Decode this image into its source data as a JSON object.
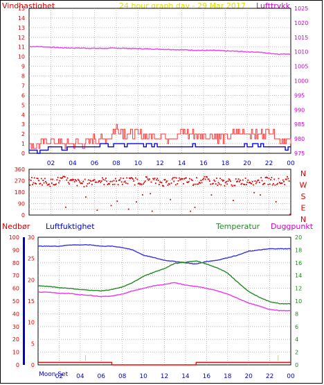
{
  "header": {
    "wind_label": "Vindhastighet",
    "graph_title": "24 hour graph day - 29 Mar 2017",
    "pressure_label": "Lufttrykk"
  },
  "lower_header": {
    "rain_label": "Nedbør",
    "humidity_label": "Luftfuktighet",
    "temperature_label": "Temperatur",
    "dewpoint_label": "Duggpunkt"
  },
  "moon_label": "Moon Set",
  "colors": {
    "wind": "#ff0000",
    "gust": "#ff3333",
    "avg_wind": "#0000ff",
    "pressure": "#ee44ee",
    "direction": "#dd0000",
    "humidity": "#3333dd",
    "temperature": "#228822",
    "dewpoint": "#ee33ee",
    "rain": "#ff0000",
    "title": "#dddd00",
    "axis_left": "#dd0000",
    "axis_right": "#cc00cc",
    "axis_time": "#0000cc",
    "moon_marker": "#dddd00"
  },
  "chart_data": [
    {
      "type": "line",
      "name": "wind-pressure",
      "title": "24 hour graph day - 29 Mar 2017",
      "ylabel": "Vindhastighet",
      "y2label": "Lufttrykk",
      "ylim": [
        0,
        15
      ],
      "y2lim": [
        975,
        1025
      ],
      "yticks": [
        "0",
        "1",
        "2",
        "3",
        "4",
        "5",
        "6",
        "7",
        "8",
        "9",
        "10",
        "11",
        "12",
        "13",
        "14",
        "15"
      ],
      "y2ticks": [
        "975",
        "980",
        "985",
        "990",
        "995",
        "1000",
        "1005",
        "1010",
        "1015",
        "1020",
        "1025"
      ],
      "xticks": [
        "02",
        "04",
        "06",
        "08",
        "10",
        "12",
        "14",
        "16",
        "18",
        "20",
        "22",
        "00"
      ],
      "xlim": [
        0,
        24
      ],
      "series": [
        {
          "name": "Lufttrykk",
          "axis": "right",
          "x": [
            0,
            1,
            2,
            3,
            4,
            5,
            6,
            7,
            8,
            9,
            10,
            11,
            12,
            13,
            14,
            15,
            16,
            17,
            18,
            19,
            20,
            21,
            22,
            23,
            24
          ],
          "values": [
            1011.8,
            1011.8,
            1011.6,
            1011.4,
            1011.3,
            1011.3,
            1011.2,
            1011.2,
            1011.3,
            1011.2,
            1011.1,
            1011.0,
            1010.9,
            1010.8,
            1010.7,
            1010.6,
            1010.5,
            1010.5,
            1010.3,
            1010.2,
            1010.0,
            1009.9,
            1009.5,
            1009.2,
            1009.3
          ]
        },
        {
          "name": "Vindhastighet",
          "axis": "left",
          "x": [
            0,
            1,
            2,
            3,
            4,
            5,
            6,
            7,
            8,
            9,
            10,
            11,
            12,
            13,
            14,
            15,
            16,
            17,
            18,
            19,
            20,
            21,
            22,
            23,
            24
          ],
          "values": [
            0.6,
            0.9,
            1.2,
            0.9,
            1.0,
            0.9,
            1.4,
            1.3,
            2.5,
            1.9,
            1.8,
            1.6,
            1.7,
            1.5,
            2.0,
            1.8,
            1.7,
            1.7,
            1.4,
            2.0,
            2.1,
            1.8,
            2.3,
            1.3,
            1.1
          ]
        },
        {
          "name": "Middelvind",
          "axis": "left",
          "x": [
            0,
            1,
            2,
            3,
            4,
            5,
            6,
            7,
            8,
            9,
            10,
            11,
            12,
            13,
            14,
            15,
            16,
            17,
            18,
            19,
            20,
            21,
            22,
            23,
            24
          ],
          "values": [
            0.3,
            0.3,
            0.5,
            0.5,
            0.6,
            0.6,
            0.7,
            0.8,
            0.9,
            0.8,
            0.9,
            0.9,
            0.8,
            0.8,
            0.7,
            0.9,
            0.8,
            0.7,
            0.6,
            0.7,
            0.9,
            0.8,
            0.6,
            0.5,
            0.5
          ]
        }
      ]
    },
    {
      "type": "scatter",
      "name": "wind-direction",
      "ylim": [
        0,
        360
      ],
      "yticks": [
        "0",
        "45",
        "90",
        "135",
        "180",
        "225",
        "270",
        "315",
        "360"
      ],
      "compass_labels": [
        "N",
        "W",
        "S",
        "E",
        "N"
      ],
      "xticks": [
        "02",
        "04",
        "06",
        "08",
        "10",
        "12",
        "14",
        "16",
        "18",
        "20",
        "22",
        "00"
      ],
      "xlim": [
        0,
        24
      ],
      "series": [
        {
          "name": "Vindretning",
          "x": [
            0,
            1,
            2,
            3,
            4,
            5,
            6,
            7,
            8,
            9,
            10,
            11,
            12,
            13,
            14,
            15,
            16,
            17,
            18,
            19,
            20,
            21,
            22,
            23,
            24
          ],
          "values": [
            265,
            270,
            255,
            280,
            260,
            250,
            275,
            265,
            260,
            270,
            265,
            280,
            255,
            265,
            270,
            260,
            275,
            265,
            260,
            255,
            270,
            265,
            270,
            260,
            280
          ]
        }
      ]
    },
    {
      "type": "line",
      "name": "temperature-humidity",
      "ylim": [
        0,
        30
      ],
      "yticks": [
        "0",
        "5",
        "10",
        "15",
        "20",
        "25",
        "30"
      ],
      "humidity_ticks": [
        "0",
        "10",
        "20",
        "30",
        "40",
        "50",
        "60",
        "70",
        "80",
        "90",
        "100"
      ],
      "temp_ticks": [
        "0",
        "2",
        "4",
        "6",
        "8",
        "10",
        "12",
        "14",
        "16",
        "18",
        "20"
      ],
      "xticks": [
        "02",
        "04",
        "06",
        "08",
        "10",
        "12",
        "14",
        "16",
        "18",
        "20",
        "22",
        "00"
      ],
      "xlim": [
        0,
        24
      ],
      "series": [
        {
          "name": "Luftfuktighet",
          "axis": "humidity",
          "ylim": [
            0,
            100
          ],
          "x": [
            0,
            1,
            2,
            3,
            4,
            5,
            6,
            7,
            8,
            9,
            10,
            11,
            12,
            13,
            14,
            15,
            16,
            17,
            18,
            19,
            20,
            21,
            22,
            23,
            24
          ],
          "values": [
            93,
            93,
            93,
            94,
            94,
            94,
            93,
            93,
            92,
            90,
            86,
            84,
            82,
            81,
            80,
            79,
            81,
            82,
            84,
            86,
            89,
            90,
            91,
            91,
            91
          ]
        },
        {
          "name": "Temperatur",
          "axis": "right",
          "ylim": [
            0,
            20
          ],
          "x": [
            0,
            1,
            2,
            3,
            4,
            5,
            6,
            7,
            8,
            9,
            10,
            11,
            12,
            13,
            14,
            15,
            16,
            17,
            18,
            19,
            20,
            21,
            22,
            23,
            24
          ],
          "values": [
            12.4,
            12.3,
            12.1,
            12.0,
            11.8,
            11.7,
            11.6,
            11.8,
            12.2,
            12.9,
            13.9,
            14.5,
            15.1,
            15.9,
            16.1,
            16.3,
            15.8,
            15.2,
            14.4,
            12.9,
            11.5,
            10.6,
            9.9,
            9.6,
            9.6
          ]
        },
        {
          "name": "Duggpunkt",
          "axis": "right",
          "ylim": [
            0,
            20
          ],
          "x": [
            0,
            1,
            2,
            3,
            4,
            5,
            6,
            7,
            8,
            9,
            10,
            11,
            12,
            13,
            14,
            15,
            16,
            17,
            18,
            19,
            20,
            21,
            22,
            23,
            24
          ],
          "values": [
            11.4,
            11.4,
            11.2,
            11.2,
            11.0,
            10.9,
            10.7,
            10.8,
            11.1,
            11.6,
            12.0,
            12.4,
            12.6,
            12.9,
            12.5,
            12.3,
            12.0,
            11.6,
            11.1,
            10.4,
            9.7,
            9.2,
            8.7,
            8.5,
            8.5
          ]
        },
        {
          "name": "Nedbør",
          "axis": "left",
          "ylim": [
            0,
            100
          ],
          "x": [
            0,
            7,
            7.01,
            15,
            15.01,
            24
          ],
          "values": [
            2,
            2,
            0,
            0,
            2,
            2
          ]
        }
      ]
    }
  ]
}
